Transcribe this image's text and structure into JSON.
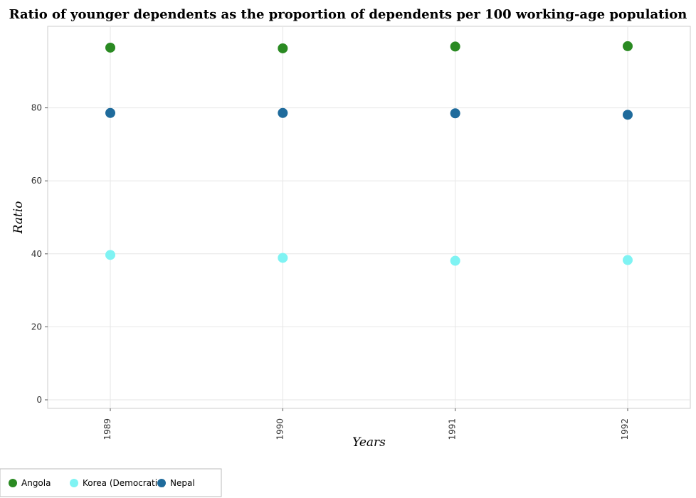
{
  "chart_data": {
    "type": "scatter",
    "title": "Ratio of younger dependents as the proportion of dependents per 100 working-age population",
    "xlabel": "Years",
    "ylabel": "Ratio",
    "categories": [
      "1989",
      "1990",
      "1991",
      "1992"
    ],
    "y_ticks": [
      0,
      20,
      40,
      60,
      80
    ],
    "ylim": [
      0,
      100
    ],
    "grid": true,
    "legend_position": "bottom-left",
    "series": [
      {
        "name": "Angola",
        "color": "#2a8a22",
        "values": [
          96.5,
          96.3,
          96.8,
          96.9
        ]
      },
      {
        "name": "Korea (Democratic)",
        "color": "#7ff3f3",
        "values": [
          39.7,
          38.9,
          38.1,
          38.3
        ]
      },
      {
        "name": "Nepal",
        "color": "#1f6b9c",
        "values": [
          78.6,
          78.6,
          78.5,
          78.1
        ]
      }
    ]
  }
}
